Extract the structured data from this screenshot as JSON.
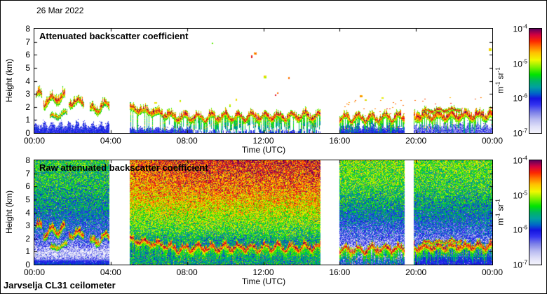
{
  "header": {
    "date": "26 Mar 2022"
  },
  "footer": {
    "label": "Jarvselja CL31 ceilometer"
  },
  "colorbar": {
    "unit": {
      "m": "m",
      "m_exp": "-1",
      "sr": " sr",
      "sr_exp": "-1"
    },
    "ticks": [
      {
        "base": "10",
        "exp": "-4"
      },
      {
        "base": "10",
        "exp": "-5"
      },
      {
        "base": "10",
        "exp": "-6"
      },
      {
        "base": "10",
        "exp": "-7"
      }
    ],
    "range": [
      "1e-7",
      "1e-4"
    ],
    "scale": "log",
    "stops": [
      [
        0.0,
        "#f4f4fc"
      ],
      [
        0.06,
        "#e0e0f8"
      ],
      [
        0.13,
        "#b8baf0"
      ],
      [
        0.2,
        "#7a7ee8"
      ],
      [
        0.27,
        "#3434f0"
      ],
      [
        0.33,
        "#1414e0"
      ],
      [
        0.38,
        "#0064c8"
      ],
      [
        0.44,
        "#00a0a0"
      ],
      [
        0.5,
        "#00b464"
      ],
      [
        0.56,
        "#00e400"
      ],
      [
        0.63,
        "#7cf000"
      ],
      [
        0.7,
        "#f0f800"
      ],
      [
        0.77,
        "#ffc000"
      ],
      [
        0.83,
        "#ff7000"
      ],
      [
        0.88,
        "#fc2800"
      ],
      [
        0.94,
        "#d40040"
      ],
      [
        1.0,
        "#5c005c"
      ]
    ]
  },
  "chart_data": [
    {
      "type": "heatmap",
      "title": "Attenuated backscatter coefficient",
      "xlabel": "Time (UTC)",
      "ylabel": "Height (km)",
      "x_ticks": [
        "00:00",
        "04:00",
        "08:00",
        "12:00",
        "16:00",
        "20:00",
        "00:00"
      ],
      "y_ticks": [
        "0",
        "1",
        "2",
        "3",
        "4",
        "5",
        "6",
        "7",
        "8"
      ],
      "xlim_hours": [
        0,
        24
      ],
      "ylim_km": [
        0,
        8
      ],
      "grid": false,
      "legend_position": "right-colorbar",
      "gaps_hours": [
        [
          3.93,
          4.97
        ],
        [
          14.97,
          15.97
        ],
        [
          19.4,
          19.85
        ]
      ],
      "style": "processed",
      "seed": 11,
      "aerosol": [
        {
          "t": [
            0,
            3.93
          ],
          "top": 0.62,
          "spike": 0.35,
          "v": 0.3,
          "speck": 0.25
        },
        {
          "t": [
            4.97,
            8.3
          ],
          "top": 0.36,
          "spike": 0.2,
          "v": 0.3,
          "speck": 0.15
        },
        {
          "t": [
            8.3,
            14.97
          ],
          "top": 0.18,
          "spike": 0.15,
          "v": 0.32,
          "sparse": 0.45
        },
        {
          "t": [
            15.97,
            19.4
          ],
          "top": 0.52,
          "spike": 0.3,
          "v": 0.3,
          "speck": 0.2
        },
        {
          "t": [
            19.85,
            24
          ],
          "top": 0.6,
          "spike": 0.3,
          "v": 0.27,
          "light": true,
          "speck": 0.2
        }
      ],
      "clouds": [
        {
          "t": [
            0.05,
            0.4
          ],
          "base": [
            2.7,
            2.85
          ],
          "th": 0.5,
          "peak": 0.96,
          "wave": 0.15
        },
        {
          "t": [
            0.45,
            1.6
          ],
          "base": [
            2.15,
            2.55
          ],
          "th": 0.55,
          "peak": 0.95,
          "wave": 0.3
        },
        {
          "t": [
            0.8,
            1.7
          ],
          "base": [
            1.1,
            1.4
          ],
          "th": 0.3,
          "peak": 0.85,
          "wave": 0.15
        },
        {
          "t": [
            1.8,
            2.6
          ],
          "base": [
            2.1,
            2.2
          ],
          "th": 0.5,
          "peak": 0.95,
          "wave": 0.2
        },
        {
          "t": [
            2.9,
            3.93
          ],
          "base": [
            1.5,
            1.95
          ],
          "th": 0.5,
          "peak": 0.93,
          "wave": 0.3
        },
        {
          "t": [
            4.97,
            7.2
          ],
          "base": [
            1.7,
            1.15
          ],
          "th": 0.45,
          "peak": 0.95,
          "wave": 0.15,
          "virga": 0.3
        },
        {
          "t": [
            7.2,
            14.97
          ],
          "base": [
            1.0,
            1.1
          ],
          "th": 0.42,
          "peak": 0.96,
          "wave": 0.25,
          "virga": 0.6
        },
        {
          "t": [
            15.97,
            19.4
          ],
          "base": [
            0.9,
            1.0
          ],
          "th": 0.45,
          "peak": 0.95,
          "wave": 0.25,
          "virga": 0.55,
          "tops": 0.25
        },
        {
          "t": [
            19.85,
            24
          ],
          "base": [
            1.0,
            1.1
          ],
          "th": 0.55,
          "peak": 0.96,
          "wave": 0.2,
          "virga": 0.3,
          "tops": 0.15
        },
        {
          "t": [
            20.3,
            22.4
          ],
          "base": [
            1.6,
            1.75
          ],
          "th": 0.18,
          "peak": 1.0,
          "wave": 0.1
        }
      ],
      "spots": [
        [
          11.35,
          5.95,
          0.97
        ],
        [
          11.5,
          6.15,
          0.9
        ],
        [
          12.0,
          4.4,
          0.8
        ],
        [
          12.62,
          2.95,
          0.96
        ],
        [
          12.7,
          3.1,
          0.9
        ],
        [
          13.3,
          4.3,
          0.9
        ],
        [
          10.55,
          2.65,
          0.8
        ],
        [
          9.3,
          6.9,
          0.72
        ],
        [
          7.6,
          2.5,
          0.78
        ],
        [
          17.05,
          2.9,
          0.86
        ],
        [
          17.3,
          2.6,
          0.8
        ],
        [
          18.2,
          2.75,
          0.8
        ],
        [
          23.8,
          6.5,
          0.8
        ],
        [
          6.3,
          2.35,
          0.8
        ],
        [
          10.2,
          2.2,
          0.75
        ]
      ]
    },
    {
      "type": "heatmap",
      "title": "Raw attenuated backscatter coefficient",
      "xlabel": "Time (UTC)",
      "ylabel": "Height (km)",
      "x_ticks": [
        "00:00",
        "04:00",
        "08:00",
        "12:00",
        "16:00",
        "20:00",
        "00:00"
      ],
      "y_ticks": [
        "0",
        "1",
        "2",
        "3",
        "4",
        "5",
        "6",
        "7",
        "8"
      ],
      "xlim_hours": [
        0,
        24
      ],
      "ylim_km": [
        0,
        8
      ],
      "grid": false,
      "legend_position": "right-colorbar",
      "gaps_hours": [
        [
          3.93,
          4.97
        ],
        [
          14.97,
          15.97
        ],
        [
          19.4,
          19.85
        ]
      ],
      "style": "raw",
      "seed": 42,
      "blocks": [
        {
          "t": [
            0,
            3.93
          ],
          "profile": [
            [
              0,
              0.36
            ],
            [
              0.25,
              0.32
            ],
            [
              0.5,
              0.14
            ],
            [
              1.0,
              0.08
            ],
            [
              1.4,
              0.18
            ],
            [
              2.2,
              0.28
            ],
            [
              3.0,
              0.33
            ],
            [
              4.5,
              0.44
            ],
            [
              6.0,
              0.5
            ],
            [
              8,
              0.54
            ]
          ],
          "calm": 0.45
        },
        {
          "t": [
            4.97,
            14.97
          ],
          "profile": [
            [
              0,
              0.48
            ],
            [
              0.8,
              0.45
            ],
            [
              1.6,
              0.42
            ],
            [
              2.2,
              0.5
            ],
            [
              3.0,
              0.58
            ],
            [
              4.0,
              0.65
            ],
            [
              5.0,
              0.72
            ],
            [
              6.0,
              0.78
            ],
            [
              7.0,
              0.82
            ],
            [
              8,
              0.85
            ]
          ],
          "ramp": 0.06
        },
        {
          "t": [
            15.97,
            19.4
          ],
          "profile": [
            [
              0,
              0.34
            ],
            [
              0.3,
              0.28
            ],
            [
              0.7,
              0.16
            ],
            [
              1.1,
              0.1
            ],
            [
              1.6,
              0.18
            ],
            [
              2.5,
              0.27
            ],
            [
              3.5,
              0.37
            ],
            [
              5.0,
              0.5
            ],
            [
              6.5,
              0.58
            ],
            [
              8,
              0.62
            ]
          ]
        },
        {
          "t": [
            19.85,
            24
          ],
          "profile": [
            [
              0,
              0.3
            ],
            [
              0.5,
              0.33
            ],
            [
              0.9,
              0.35
            ],
            [
              1.3,
              0.28
            ],
            [
              1.9,
              0.22
            ],
            [
              2.6,
              0.3
            ],
            [
              3.5,
              0.38
            ],
            [
              4.8,
              0.47
            ],
            [
              6.0,
              0.55
            ],
            [
              8,
              0.6
            ]
          ],
          "calm": 0.6
        }
      ],
      "clouds": [
        {
          "t": [
            0.05,
            0.4
          ],
          "base": [
            2.7,
            2.85
          ],
          "th": 0.5,
          "peak": 0.96,
          "wave": 0.15
        },
        {
          "t": [
            0.45,
            1.6
          ],
          "base": [
            2.15,
            2.55
          ],
          "th": 0.5,
          "peak": 0.94,
          "wave": 0.3
        },
        {
          "t": [
            0.8,
            1.7
          ],
          "base": [
            1.1,
            1.4
          ],
          "th": 0.3,
          "peak": 0.85,
          "wave": 0.15
        },
        {
          "t": [
            1.8,
            2.6
          ],
          "base": [
            2.1,
            2.2
          ],
          "th": 0.45,
          "peak": 0.94,
          "wave": 0.2
        },
        {
          "t": [
            2.9,
            3.93
          ],
          "base": [
            1.5,
            1.95
          ],
          "th": 0.45,
          "peak": 0.92,
          "wave": 0.3
        },
        {
          "t": [
            4.97,
            7.2
          ],
          "base": [
            1.7,
            1.15
          ],
          "th": 0.45,
          "peak": 0.97,
          "wave": 0.15,
          "virga": 0.5
        },
        {
          "t": [
            7.2,
            14.97
          ],
          "base": [
            1.0,
            1.1
          ],
          "th": 0.45,
          "peak": 0.97,
          "wave": 0.25,
          "virga": 0.8
        },
        {
          "t": [
            15.97,
            19.4
          ],
          "base": [
            0.9,
            1.0
          ],
          "th": 0.45,
          "peak": 0.96,
          "wave": 0.25,
          "virga": 0.7
        },
        {
          "t": [
            19.85,
            24
          ],
          "base": [
            1.05,
            1.15
          ],
          "th": 0.5,
          "peak": 0.96,
          "wave": 0.2,
          "virga": 0.5
        },
        {
          "t": [
            20.3,
            22.4
          ],
          "base": [
            1.6,
            1.75
          ],
          "th": 0.18,
          "peak": 1.0,
          "wave": 0.1
        }
      ],
      "spots": []
    }
  ]
}
